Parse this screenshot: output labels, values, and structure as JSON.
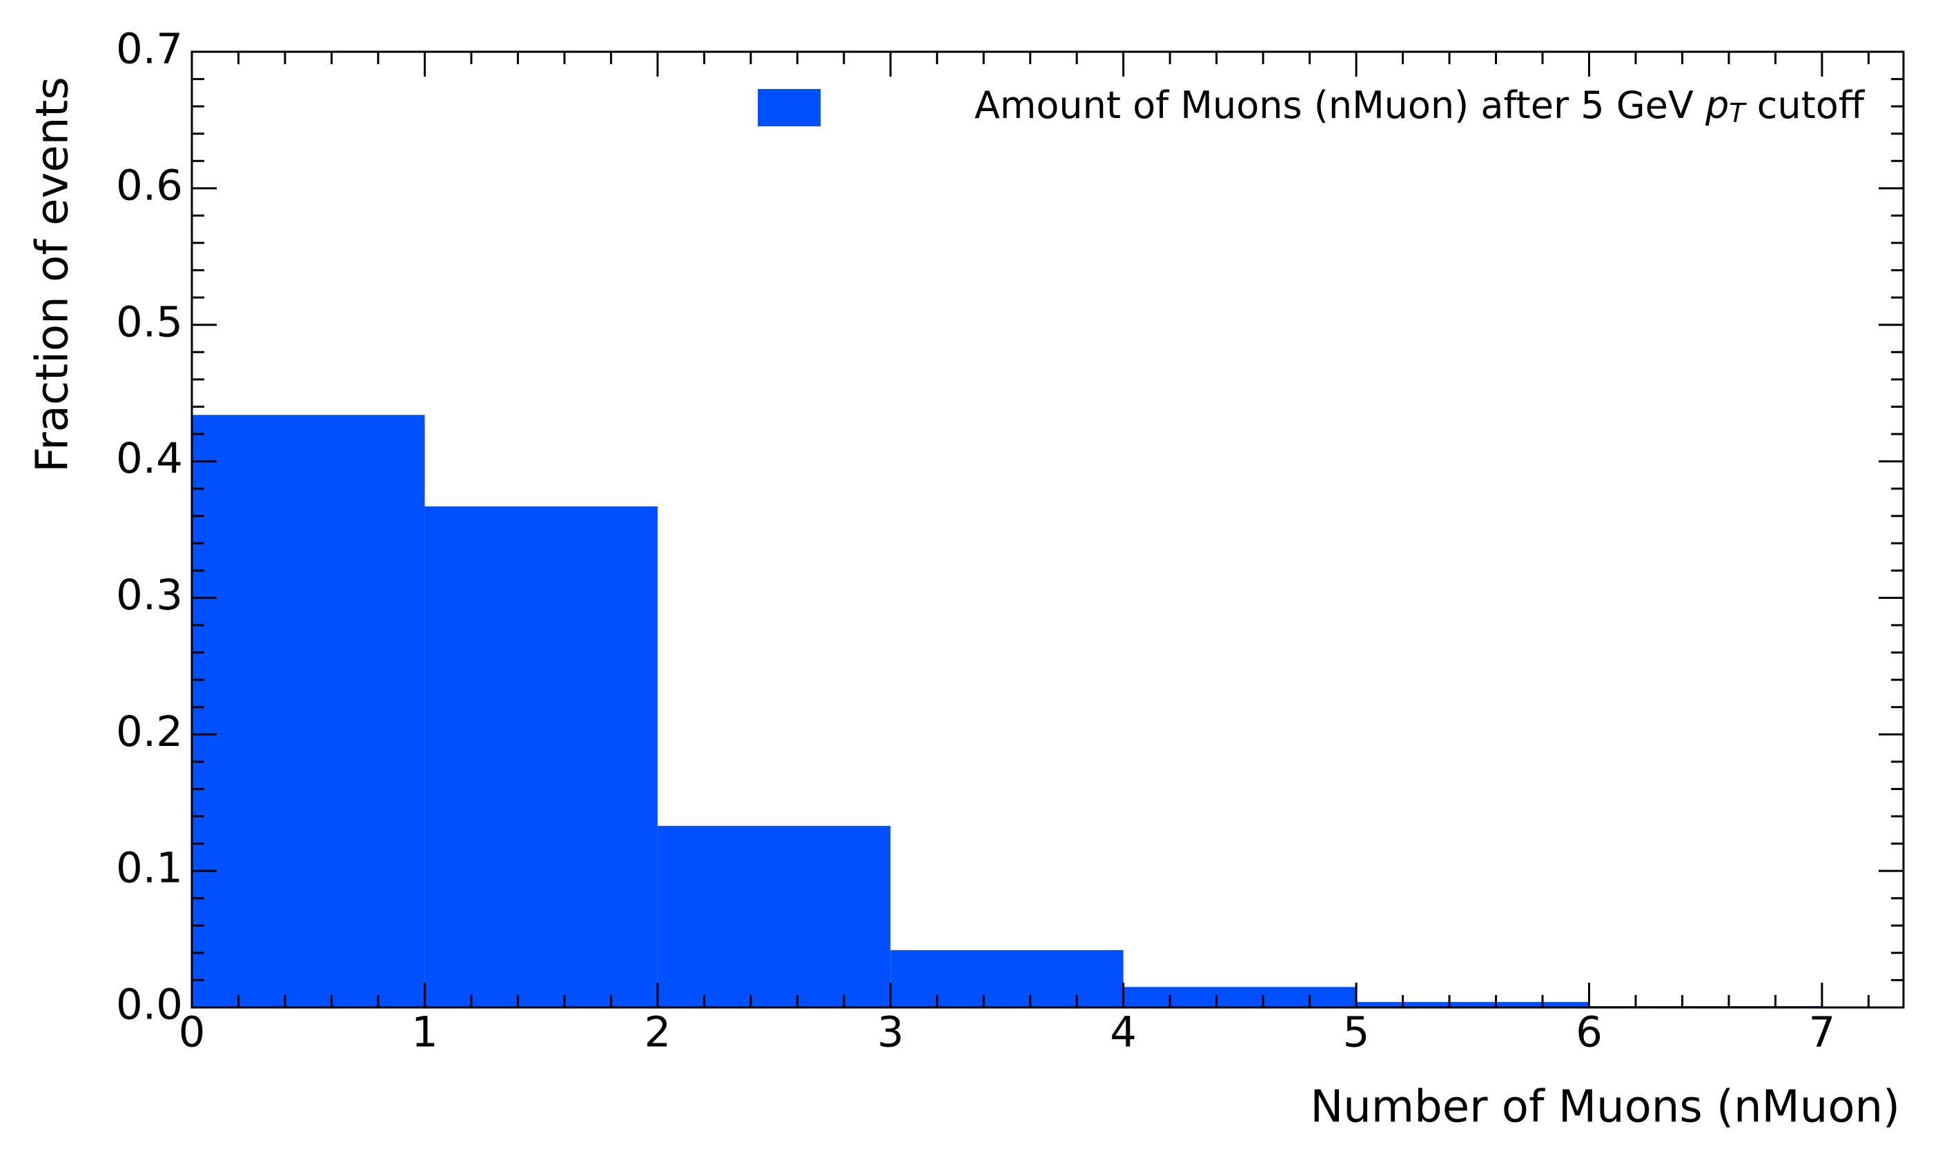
{
  "chart_data": {
    "type": "histogram",
    "x_label": "Number of Muons (nMuon)",
    "y_label": "Fraction of events",
    "bins": [
      0,
      1,
      2,
      3,
      4,
      5,
      6,
      7
    ],
    "series": [
      {
        "name": "Amount of Muons (nMuon) after 5 GeV pT cutoff",
        "color": "#0050ff",
        "values": [
          0.434,
          0.367,
          0.133,
          0.042,
          0.015,
          0.004,
          0.001
        ]
      }
    ],
    "xlim": [
      0,
      7.35
    ],
    "ylim": [
      0,
      0.7
    ],
    "xticks": [
      0,
      1,
      2,
      3,
      4,
      5,
      6,
      7
    ],
    "yticks": [
      {
        "value": 0,
        "label": "0.0"
      },
      0.1,
      0.2,
      0.3,
      0.4,
      0.5,
      0.6,
      0.7
    ],
    "xticks_minor": [
      0.2,
      0.4,
      0.6,
      0.8,
      1.2,
      1.4,
      1.6,
      1.8,
      2.2,
      2.4,
      2.6,
      2.8,
      3.2,
      3.4,
      3.6,
      3.8,
      4.2,
      4.4,
      4.6,
      4.8,
      5.2,
      5.4,
      5.6,
      5.8,
      6.2,
      6.4,
      6.6,
      6.8,
      7.2
    ],
    "yticks_minor": [
      0.02,
      0.04,
      0.06,
      0.08,
      0.12,
      0.14,
      0.16,
      0.18,
      0.22,
      0.24,
      0.26,
      0.28,
      0.32,
      0.34,
      0.36,
      0.38,
      0.42,
      0.44,
      0.46,
      0.48,
      0.52,
      0.54,
      0.56,
      0.58,
      0.62,
      0.64,
      0.66,
      0.68
    ],
    "legend": "upper right"
  }
}
